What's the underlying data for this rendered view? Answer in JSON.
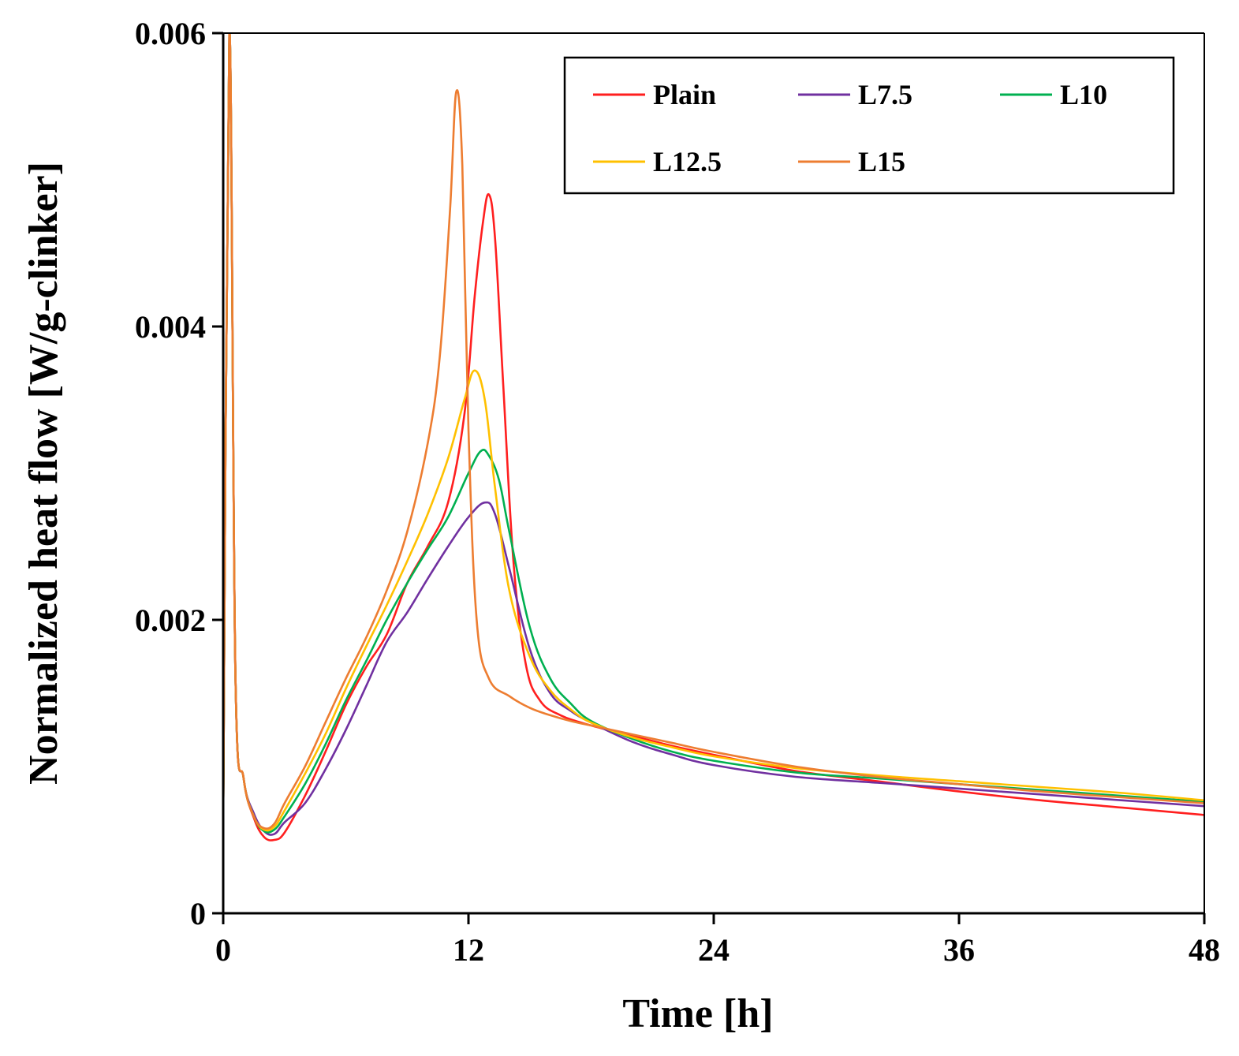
{
  "chart_data": {
    "type": "line",
    "title": "",
    "xlabel": "Time [h]",
    "ylabel": "Normalized heat flow [W/g-clinker]",
    "xlim": [
      0,
      48
    ],
    "ylim": [
      0,
      0.006
    ],
    "xticks": [
      0,
      12,
      24,
      36,
      48
    ],
    "xtick_labels": [
      "0",
      "12",
      "24",
      "36",
      "48"
    ],
    "yticks": [
      0,
      0.002,
      0.004,
      0.006
    ],
    "ytick_labels": [
      "0",
      "0.002",
      "0.004",
      "0.006"
    ],
    "grid": false,
    "legend_position": "top-right",
    "series": [
      {
        "name": "Plain",
        "color": "#ff1f1f",
        "x": [
          0.0,
          0.3,
          0.6,
          1.0,
          1.5,
          2.0,
          2.5,
          3.0,
          4.0,
          5.0,
          6.0,
          7.0,
          8.0,
          9.0,
          10.0,
          11.0,
          11.8,
          12.3,
          12.7,
          13.0,
          13.3,
          13.7,
          14.2,
          14.8,
          15.5,
          16.5,
          18.0,
          20.0,
          22.0,
          24.0,
          28.0,
          32.0,
          36.0,
          40.0,
          44.0,
          48.0
        ],
        "y": [
          0.0006,
          0.006,
          0.0016,
          0.00092,
          0.00065,
          0.00052,
          0.0005,
          0.00055,
          0.0008,
          0.0011,
          0.00142,
          0.00168,
          0.0019,
          0.00225,
          0.0025,
          0.0028,
          0.0034,
          0.0042,
          0.0047,
          0.0049,
          0.0046,
          0.0036,
          0.0024,
          0.0017,
          0.00145,
          0.00135,
          0.00128,
          0.00121,
          0.00114,
          0.00108,
          0.00097,
          0.0009,
          0.00083,
          0.00077,
          0.00072,
          0.00067
        ]
      },
      {
        "name": "L7.5",
        "color": "#7030a0",
        "x": [
          0.0,
          0.3,
          0.6,
          1.0,
          1.5,
          2.0,
          2.5,
          3.0,
          4.0,
          5.0,
          6.0,
          7.0,
          8.0,
          9.0,
          10.0,
          11.0,
          12.0,
          12.8,
          13.3,
          14.0,
          15.0,
          16.0,
          17.0,
          18.0,
          20.0,
          22.0,
          24.0,
          28.0,
          32.0,
          36.0,
          40.0,
          44.0,
          48.0
        ],
        "y": [
          0.0006,
          0.006,
          0.0016,
          0.00092,
          0.00068,
          0.00056,
          0.00054,
          0.00062,
          0.00075,
          0.00098,
          0.00125,
          0.00155,
          0.00185,
          0.00205,
          0.00228,
          0.0025,
          0.0027,
          0.0028,
          0.00272,
          0.00235,
          0.0018,
          0.0015,
          0.00138,
          0.0013,
          0.00117,
          0.00108,
          0.00101,
          0.00093,
          0.00089,
          0.00085,
          0.00081,
          0.00077,
          0.00073
        ]
      },
      {
        "name": "L10",
        "color": "#00b050",
        "x": [
          0.0,
          0.3,
          0.6,
          1.0,
          1.5,
          2.0,
          2.5,
          3.0,
          4.0,
          5.0,
          6.0,
          7.0,
          8.0,
          9.0,
          10.0,
          11.0,
          12.0,
          12.6,
          13.0,
          13.5,
          14.0,
          15.0,
          16.0,
          17.0,
          18.0,
          20.0,
          22.0,
          24.0,
          28.0,
          32.0,
          36.0,
          40.0,
          44.0,
          48.0
        ],
        "y": [
          0.0006,
          0.006,
          0.0016,
          0.00092,
          0.00066,
          0.00056,
          0.00057,
          0.00066,
          0.00088,
          0.00115,
          0.00145,
          0.00172,
          0.002,
          0.00225,
          0.00248,
          0.0027,
          0.003,
          0.00315,
          0.00312,
          0.00295,
          0.0026,
          0.00195,
          0.0016,
          0.00143,
          0.00131,
          0.00119,
          0.0011,
          0.00104,
          0.00096,
          0.00092,
          0.00088,
          0.00084,
          0.0008,
          0.00076
        ]
      },
      {
        "name": "L12.5",
        "color": "#ffc000",
        "x": [
          0.0,
          0.3,
          0.6,
          1.0,
          1.5,
          2.0,
          2.5,
          3.0,
          4.0,
          5.0,
          6.0,
          7.0,
          8.0,
          9.0,
          10.0,
          11.0,
          11.8,
          12.3,
          12.8,
          13.3,
          14.0,
          15.0,
          16.0,
          17.0,
          18.0,
          20.0,
          22.0,
          24.0,
          28.0,
          32.0,
          36.0,
          40.0,
          44.0,
          48.0
        ],
        "y": [
          0.0006,
          0.006,
          0.0016,
          0.00092,
          0.00066,
          0.00057,
          0.00059,
          0.0007,
          0.00095,
          0.00122,
          0.00153,
          0.00182,
          0.0021,
          0.0024,
          0.00272,
          0.0031,
          0.0035,
          0.0037,
          0.0035,
          0.0029,
          0.0022,
          0.00175,
          0.00152,
          0.00139,
          0.0013,
          0.0012,
          0.00113,
          0.00107,
          0.00099,
          0.00094,
          0.0009,
          0.00086,
          0.00082,
          0.00077
        ]
      },
      {
        "name": "L15",
        "color": "#ed7d31",
        "x": [
          0.0,
          0.3,
          0.6,
          1.0,
          1.5,
          2.0,
          2.5,
          3.0,
          4.0,
          5.0,
          6.0,
          7.0,
          8.0,
          9.0,
          10.0,
          10.6,
          11.1,
          11.4,
          11.7,
          12.0,
          12.4,
          13.0,
          14.0,
          15.0,
          16.0,
          17.0,
          18.0,
          20.0,
          22.0,
          24.0,
          28.0,
          32.0,
          36.0,
          40.0,
          44.0,
          48.0
        ],
        "y": [
          0.0006,
          0.006,
          0.0016,
          0.00092,
          0.00066,
          0.00058,
          0.00061,
          0.00075,
          0.001,
          0.0013,
          0.0016,
          0.00188,
          0.0022,
          0.0026,
          0.0032,
          0.0038,
          0.0048,
          0.0056,
          0.0051,
          0.0033,
          0.002,
          0.0016,
          0.00148,
          0.0014,
          0.00135,
          0.00131,
          0.00128,
          0.00122,
          0.00116,
          0.0011,
          0.001,
          0.00093,
          0.00088,
          0.00083,
          0.00079,
          0.00075
        ]
      }
    ]
  }
}
